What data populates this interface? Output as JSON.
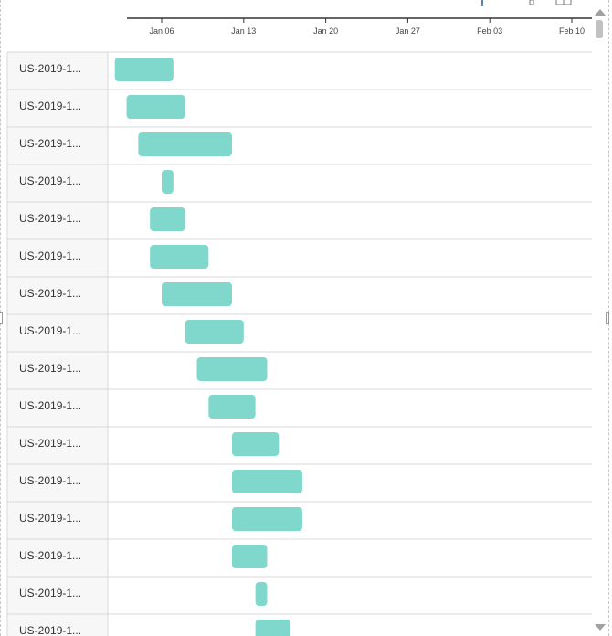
{
  "icons": {
    "toolbar": [
      "pin-icon",
      "grid-icon"
    ],
    "scroll_up": "triangle-up-icon",
    "scroll_down": "triangle-down-icon"
  },
  "colors": {
    "bar": "#80d8cc",
    "gridline": "#d9d9d9",
    "axis": "#333333",
    "label_column_bg": "#f7f7f7",
    "scroll_thumb": "#c1c1c1"
  },
  "chart_data": {
    "type": "gantt",
    "title": "",
    "x_axis": {
      "type": "date",
      "start": "2019-01-03",
      "end": "2019-02-10",
      "tick_labels": [
        "Jan 06",
        "Jan 13",
        "Jan 20",
        "Jan 27",
        "Feb 03",
        "Feb 10"
      ],
      "tick_dates": [
        "2019-01-06",
        "2019-01-13",
        "2019-01-20",
        "2019-01-27",
        "2019-02-03",
        "2019-02-10"
      ]
    },
    "grid": true,
    "tasks": [
      {
        "label": "US-2019-1...",
        "start": "2019-01-02",
        "end": "2019-01-07"
      },
      {
        "label": "US-2019-1...",
        "start": "2019-01-03",
        "end": "2019-01-08"
      },
      {
        "label": "US-2019-1...",
        "start": "2019-01-04",
        "end": "2019-01-12"
      },
      {
        "label": "US-2019-1...",
        "start": "2019-01-06",
        "end": "2019-01-07"
      },
      {
        "label": "US-2019-1...",
        "start": "2019-01-05",
        "end": "2019-01-08"
      },
      {
        "label": "US-2019-1...",
        "start": "2019-01-05",
        "end": "2019-01-10"
      },
      {
        "label": "US-2019-1...",
        "start": "2019-01-06",
        "end": "2019-01-12"
      },
      {
        "label": "US-2019-1...",
        "start": "2019-01-08",
        "end": "2019-01-13"
      },
      {
        "label": "US-2019-1...",
        "start": "2019-01-09",
        "end": "2019-01-15"
      },
      {
        "label": "US-2019-1...",
        "start": "2019-01-10",
        "end": "2019-01-14"
      },
      {
        "label": "US-2019-1...",
        "start": "2019-01-12",
        "end": "2019-01-16"
      },
      {
        "label": "US-2019-1...",
        "start": "2019-01-12",
        "end": "2019-01-18"
      },
      {
        "label": "US-2019-1...",
        "start": "2019-01-12",
        "end": "2019-01-18"
      },
      {
        "label": "US-2019-1...",
        "start": "2019-01-12",
        "end": "2019-01-15"
      },
      {
        "label": "US-2019-1...",
        "start": "2019-01-14",
        "end": "2019-01-15"
      },
      {
        "label": "US-2019-1...",
        "start": "2019-01-14",
        "end": "2019-01-17"
      }
    ]
  }
}
